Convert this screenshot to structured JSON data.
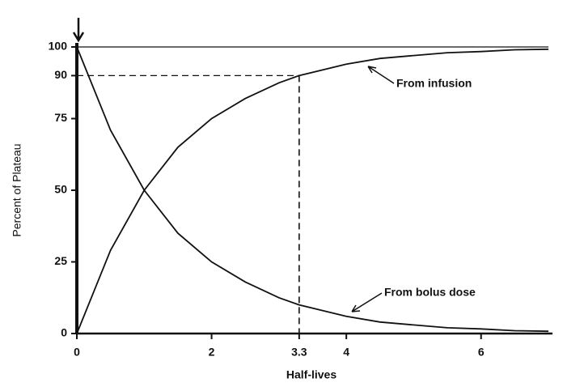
{
  "chart_data": {
    "type": "line",
    "x_label": "Half-lives",
    "y_label": "Percent of Plateau",
    "x": [
      0,
      0.5,
      1,
      1.5,
      2,
      2.5,
      3,
      3.3,
      4,
      4.5,
      5,
      5.5,
      6,
      6.5,
      7
    ],
    "series": [
      {
        "name": "From infusion",
        "color": "#111111",
        "values": [
          0,
          29,
          50,
          65,
          75,
          82,
          87.5,
          90,
          94,
          96,
          97,
          98,
          98.4,
          99,
          99.2
        ]
      },
      {
        "name": "From bolus dose",
        "color": "#111111",
        "values": [
          100,
          71,
          50,
          35,
          25,
          18,
          12.5,
          10,
          6,
          4,
          3,
          2,
          1.6,
          1,
          0.8
        ]
      }
    ],
    "reference_x": 3.3,
    "reference_y": 90,
    "plateau": 100,
    "xlim": [
      0,
      7
    ],
    "ylim": [
      0,
      100
    ],
    "xticks": [
      0,
      2,
      3.3,
      4,
      6
    ],
    "yticks": [
      0,
      25,
      50,
      75,
      90,
      100
    ]
  }
}
